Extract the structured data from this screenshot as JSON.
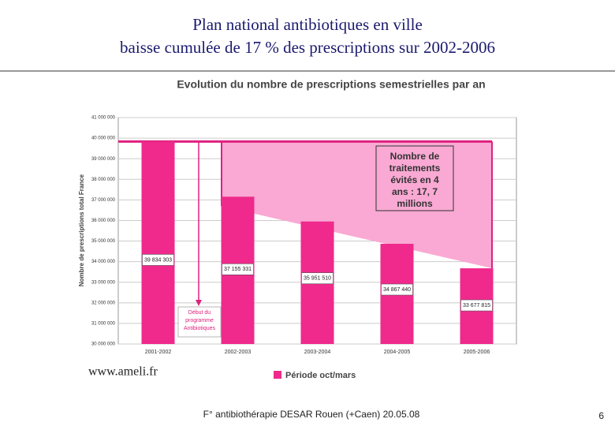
{
  "header": {
    "title_line1": "Plan national antibiotiques en ville",
    "title_line2": "baisse cumulée de 17 % des prescriptions sur 2002-2006"
  },
  "chart_data": {
    "type": "bar",
    "title": "Evolution du nombre de prescriptions semestrielles par an",
    "y_label": "Nombre de prescriptions total France",
    "categories": [
      "2001-2002",
      "2002-2003",
      "2003-2004",
      "2004-2005",
      "2005-2006"
    ],
    "values": [
      39834303,
      37155331,
      35951510,
      34867440,
      33677815
    ],
    "value_labels": [
      "39 834 303",
      "37 155 331",
      "35 951 510",
      "34 867 440",
      "33 677 815"
    ],
    "color": "#ef2a8c",
    "ylim": [
      30000000,
      41000000
    ],
    "yticks": [
      {
        "value": 30000000,
        "label": "30 000 000"
      },
      {
        "value": 31000000,
        "label": "31 000 000"
      },
      {
        "value": 32000000,
        "label": "32 000 000"
      },
      {
        "value": 33000000,
        "label": "33 000 000"
      },
      {
        "value": 34000000,
        "label": "34 000 000"
      },
      {
        "value": 35000000,
        "label": "35 000 000"
      },
      {
        "value": 36000000,
        "label": "36 000 000"
      },
      {
        "value": 37000000,
        "label": "37 000 000"
      },
      {
        "value": 38000000,
        "label": "38 000 000"
      },
      {
        "value": 39000000,
        "label": "39 000 000"
      },
      {
        "value": 40000000,
        "label": "40 000 000"
      },
      {
        "value": 41000000,
        "label": "41 000 000"
      }
    ],
    "grid": true,
    "legend": "Période oct/mars",
    "annotation_box": "Nombre de traitements évités en 4 ans : 17, 7 millions",
    "annotation_start": "Début du programme Antibiotiques"
  },
  "footer": {
    "source": "www.ameli.fr",
    "caption": "F° antibiothérapie DESAR Rouen (+Caen) 20.05.08",
    "page": "6"
  }
}
